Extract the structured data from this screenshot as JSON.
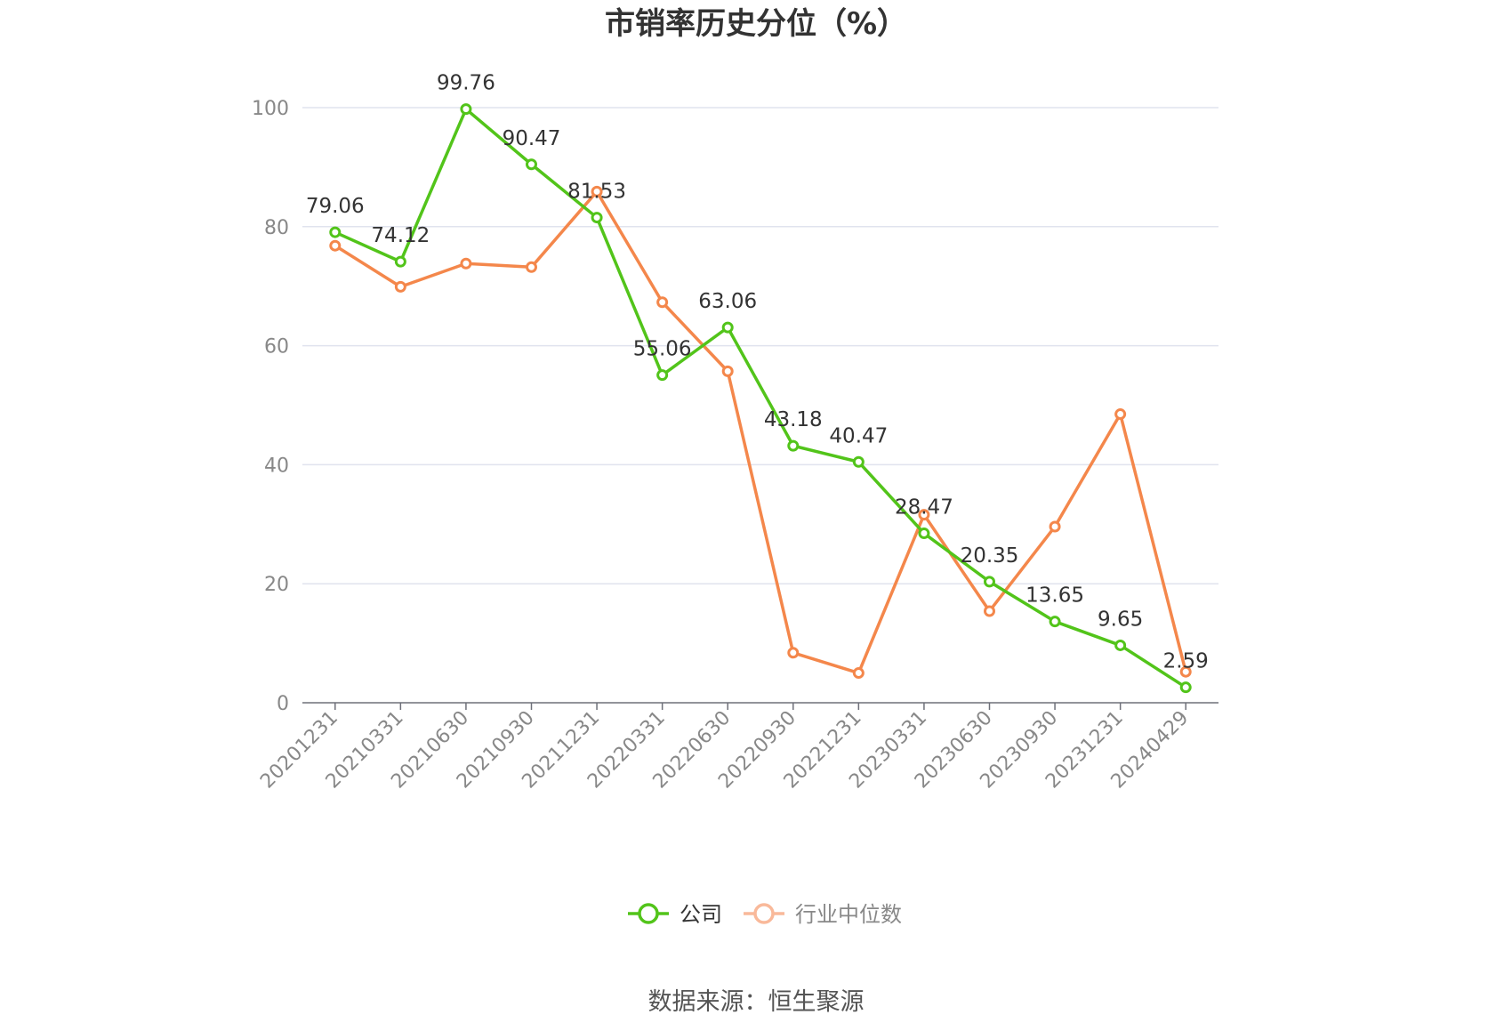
{
  "chart_data": {
    "type": "line",
    "title": "市销率历史分位（%）",
    "categories": [
      "20201231",
      "20210331",
      "20210630",
      "20210930",
      "20211231",
      "20220331",
      "20220630",
      "20220930",
      "20221231",
      "20230331",
      "20230630",
      "20230930",
      "20231231",
      "20240429"
    ],
    "ylim": [
      0,
      100
    ],
    "yticks": [
      0,
      20,
      40,
      60,
      80,
      100
    ],
    "grid": true,
    "legend_position": "bottom",
    "series": [
      {
        "name": "公司",
        "color": "#52c41a",
        "values": [
          79.06,
          74.12,
          99.76,
          90.47,
          81.53,
          55.06,
          63.06,
          43.18,
          40.47,
          28.47,
          20.35,
          13.65,
          9.65,
          2.59
        ],
        "labels": [
          "79.06",
          "74.12",
          "99.76",
          "90.47",
          "81.53",
          "55.06",
          "63.06",
          "43.18",
          "40.47",
          "28.47",
          "20.35",
          "13.65",
          "9.65",
          "2.59"
        ]
      },
      {
        "name": "行业中位数",
        "color": "#f4874b",
        "values": [
          76.8,
          69.9,
          73.8,
          73.2,
          85.9,
          67.3,
          55.7,
          8.4,
          5.0,
          31.6,
          15.4,
          29.6,
          48.5,
          5.2
        ]
      }
    ]
  },
  "footer": {
    "source": "数据来源：恒生聚源"
  }
}
